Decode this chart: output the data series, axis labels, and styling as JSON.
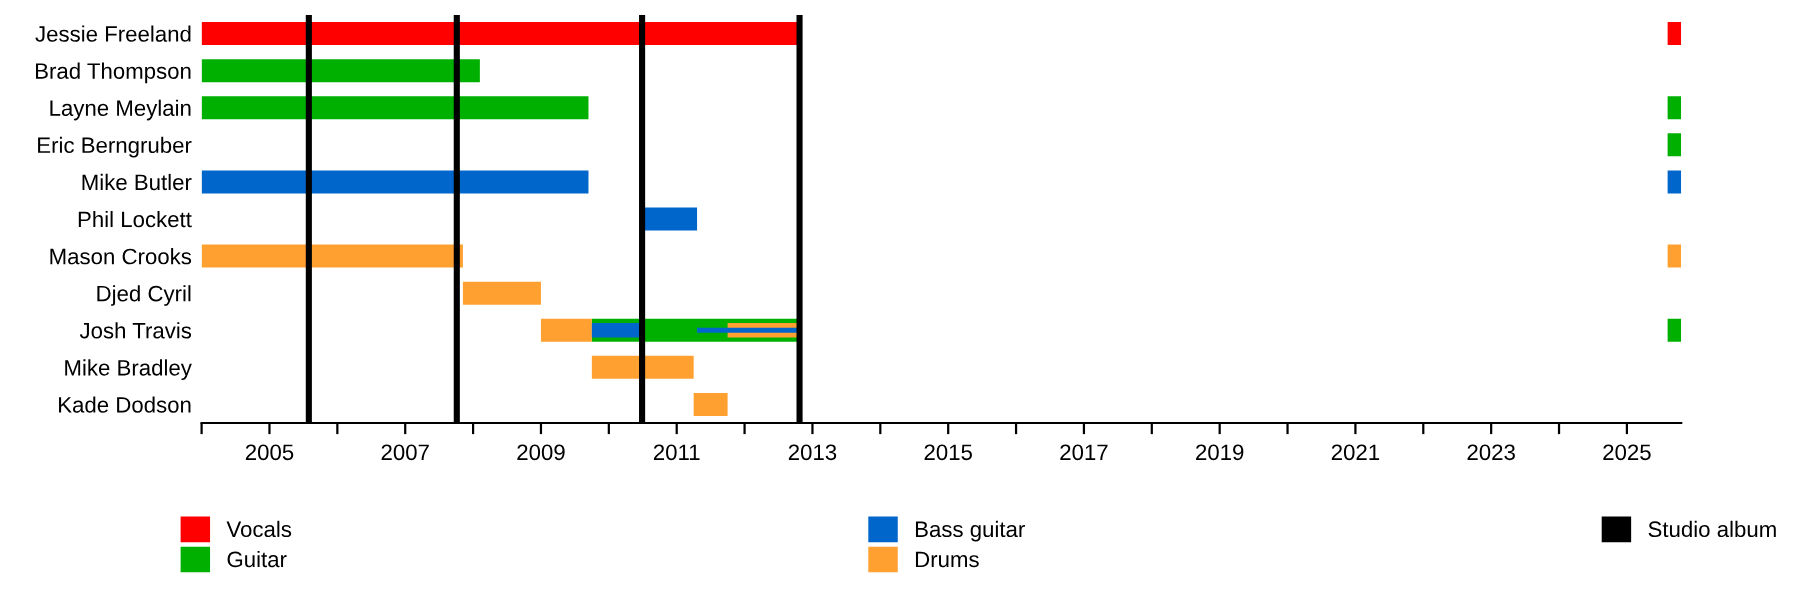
{
  "chart_data": {
    "type": "bar",
    "orientation": "horizontal",
    "categories": [
      "Jessie Freeland",
      "Brad Thompson",
      "Layne Meylain",
      "Eric Berngruber",
      "Mike Butler",
      "Phil Lockett",
      "Mason Crooks",
      "Djed Cyril",
      "Josh Travis",
      "Mike Bradley",
      "Kade Dodson"
    ],
    "series": [
      {
        "name": "Vocals",
        "color": "#ff0000",
        "base": [
          2004,
          null,
          null,
          null,
          null,
          null,
          null,
          null,
          null,
          null,
          null
        ],
        "values": [
          8.8,
          null,
          null,
          null,
          null,
          null,
          null,
          null,
          null,
          null,
          null
        ]
      },
      {
        "name": "Guitar",
        "color": "#00b000",
        "base": [
          null,
          2004,
          2004,
          null,
          null,
          null,
          null,
          null,
          2009.75,
          null,
          null
        ],
        "values": [
          null,
          4.1,
          5.7,
          null,
          null,
          null,
          null,
          null,
          3.05,
          null,
          null
        ]
      },
      {
        "name": "Bass guitar",
        "color": "#0066cc",
        "base": [
          null,
          null,
          null,
          null,
          2004,
          2010.5,
          null,
          null,
          null,
          null,
          null
        ],
        "values": [
          null,
          null,
          null,
          null,
          5.7,
          0.8,
          null,
          null,
          null,
          null,
          null
        ]
      },
      {
        "name": "Drums",
        "color": "#ffa030",
        "base": [
          null,
          null,
          null,
          null,
          null,
          null,
          2004,
          2007.85,
          2009.0,
          2009.75,
          2011.25
        ],
        "values": [
          null,
          null,
          null,
          null,
          null,
          null,
          3.85,
          1.15,
          0.75,
          1.5,
          0.5
        ]
      },
      {
        "color": "#ff0000",
        "base": [
          2025.6,
          null,
          null,
          null,
          null,
          null,
          null,
          null,
          null,
          null,
          null
        ],
        "values": [
          0.2,
          null,
          null,
          null,
          null,
          null,
          null,
          null,
          null,
          null,
          null
        ]
      },
      {
        "color": "#00b000",
        "base": [
          null,
          null,
          2025.6,
          2025.6,
          null,
          null,
          null,
          null,
          2025.6,
          null,
          null
        ],
        "values": [
          null,
          null,
          0.2,
          0.2,
          null,
          null,
          null,
          null,
          0.2,
          null,
          null
        ]
      },
      {
        "color": "#0066cc",
        "base": [
          null,
          null,
          null,
          null,
          2025.6,
          null,
          null,
          null,
          null,
          null,
          null
        ],
        "values": [
          null,
          null,
          null,
          null,
          0.2,
          null,
          null,
          null,
          null,
          null,
          null
        ]
      },
      {
        "color": "#ffa030",
        "base": [
          null,
          null,
          null,
          null,
          null,
          null,
          2025.6,
          null,
          null,
          null,
          null
        ],
        "values": [
          null,
          null,
          null,
          null,
          null,
          null,
          0.2,
          null,
          null,
          null,
          null
        ]
      },
      {
        "color": "#ffa030",
        "base": [
          null,
          null,
          null,
          null,
          null,
          null,
          null,
          null,
          2011.75,
          null,
          null
        ],
        "values": [
          null,
          null,
          null,
          null,
          null,
          null,
          null,
          null,
          1.05,
          null,
          null
        ]
      },
      {
        "color": "#0066cc",
        "base": [
          null,
          null,
          null,
          null,
          null,
          null,
          null,
          null,
          2009.75,
          null,
          null
        ],
        "values": [
          null,
          null,
          null,
          null,
          null,
          null,
          null,
          null,
          0.75,
          null,
          null
        ]
      },
      {
        "color": "#0066cc",
        "base": [
          null,
          null,
          null,
          null,
          null,
          null,
          null,
          null,
          2011.3,
          null,
          null
        ],
        "values": [
          null,
          null,
          null,
          null,
          null,
          null,
          null,
          null,
          1.5,
          null,
          null
        ]
      }
    ],
    "ref_lines": [
      {
        "axis": "x",
        "value": 2005.58,
        "label": "Studio album",
        "color": "#000000"
      },
      {
        "axis": "x",
        "value": 2007.76,
        "color": "#000000"
      },
      {
        "axis": "x",
        "value": 2010.49,
        "color": "#000000"
      },
      {
        "axis": "x",
        "value": 2012.81,
        "color": "#000000"
      }
    ],
    "xlim": [
      2004,
      2025.8
    ],
    "xticks": [
      {
        "value": 2004,
        "label": null
      },
      2005,
      {
        "value": 2006,
        "label": null
      },
      2007,
      {
        "value": 2008,
        "label": null
      },
      2009,
      {
        "value": 2010,
        "label": null
      },
      2011,
      {
        "value": 2012,
        "label": null
      },
      2013,
      {
        "value": 2014,
        "label": null
      },
      2015,
      {
        "value": 2016,
        "label": null
      },
      2017,
      {
        "value": 2018,
        "label": null
      },
      2019,
      {
        "value": 2020,
        "label": null
      },
      2021,
      {
        "value": 2022,
        "label": null
      },
      2023,
      {
        "value": 2024,
        "label": null
      },
      2025
    ],
    "grid": false,
    "legend": "bottom"
  }
}
